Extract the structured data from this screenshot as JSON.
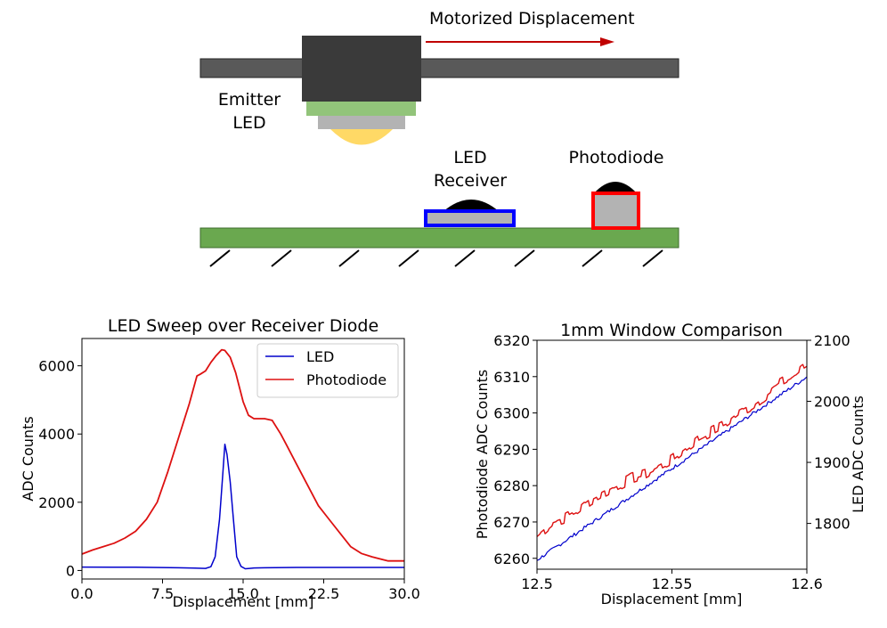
{
  "diagram": {
    "motor_label": "Motorized Displacement",
    "emitter_label_line1": "Emitter",
    "emitter_label_line2": "LED",
    "receiver_label_line1": "LED",
    "receiver_label_line2": "Receiver",
    "photodiode_label": "Photodiode",
    "colors": {
      "rail": "#595959",
      "carriage": "#3a3a3a",
      "led_base": "#92c47a",
      "led_body": "#b3b3b3",
      "led_lens": "#ffd966",
      "board": "#6aa84f",
      "receiver_border": "#0000ff",
      "photodiode_border": "#ff0000",
      "arrow": "#c00000"
    }
  },
  "chart_data": [
    {
      "type": "line",
      "title": "LED Sweep over Receiver Diode",
      "xlabel": "Displacement [mm]",
      "ylabel": "ADC Counts",
      "xlim": [
        0,
        30
      ],
      "ylim": [
        -250,
        6800
      ],
      "xticks": [
        0,
        7.5,
        15,
        22.5,
        30
      ],
      "xtick_labels": [
        "0.0",
        "7.5",
        "15.0",
        "22.5",
        "30.0"
      ],
      "yticks": [
        0,
        2000,
        4000,
        6000
      ],
      "ytick_labels": [
        "0",
        "2000",
        "4000",
        "6000"
      ],
      "grid": false,
      "legend": "top-right",
      "series": [
        {
          "name": "LED",
          "color": "#0000cc",
          "x": [
            0,
            5,
            9,
            10.5,
            11.5,
            12,
            12.4,
            12.8,
            13.1,
            13.3,
            13.5,
            13.8,
            14.1,
            14.4,
            14.8,
            15.2,
            15.6,
            16,
            17,
            20,
            25,
            30
          ],
          "y": [
            100,
            95,
            80,
            70,
            60,
            110,
            400,
            1500,
            2800,
            3700,
            3400,
            2600,
            1500,
            400,
            120,
            50,
            60,
            75,
            80,
            90,
            90,
            90
          ]
        },
        {
          "name": "Photodiode",
          "color": "#dd1111",
          "x": [
            0,
            1,
            2,
            3,
            4,
            5,
            6,
            7,
            8,
            9,
            10,
            10.7,
            11,
            11.5,
            12,
            12.5,
            13,
            13.3,
            13.8,
            14.3,
            15,
            15.5,
            16,
            17,
            17.7,
            18.5,
            19,
            20,
            21,
            22,
            23,
            24,
            25,
            26,
            27,
            28,
            28.5,
            30
          ],
          "y": [
            480,
            600,
            700,
            800,
            950,
            1150,
            1500,
            2000,
            2900,
            3900,
            4900,
            5700,
            5750,
            5850,
            6100,
            6300,
            6470,
            6450,
            6250,
            5800,
            4950,
            4550,
            4450,
            4450,
            4400,
            4000,
            3700,
            3100,
            2500,
            1900,
            1500,
            1100,
            700,
            500,
            400,
            320,
            280,
            280
          ]
        }
      ]
    },
    {
      "type": "line",
      "title": "1mm Window Comparison",
      "xlabel": "Displacement [mm]",
      "ylabel": "Photodiode ADC Counts",
      "ylabel_right": "LED ADC Counts",
      "xlim": [
        12.5,
        12.6
      ],
      "ylim": [
        6257,
        6320
      ],
      "ylim_right": [
        1725,
        2100
      ],
      "xticks": [
        12.5,
        12.55,
        12.6
      ],
      "xtick_labels": [
        "12.5",
        "12.55",
        "12.6"
      ],
      "yticks": [
        6260,
        6270,
        6280,
        6290,
        6300,
        6310,
        6320
      ],
      "yticks_right": [
        1800,
        1900,
        2000,
        2100
      ],
      "grid": false,
      "series": [
        {
          "name": "Photodiode",
          "axis": "left",
          "color": "#dd1111",
          "x": [
            12.5,
            12.503,
            12.506,
            12.51,
            12.515,
            12.52,
            12.525,
            12.53,
            12.535,
            12.54,
            12.545,
            12.55,
            12.555,
            12.56,
            12.565,
            12.57,
            12.575,
            12.58,
            12.585,
            12.59,
            12.595,
            12.598,
            12.6
          ],
          "y": [
            6266,
            6268,
            6270,
            6271,
            6273,
            6276,
            6278,
            6280,
            6282,
            6283,
            6285,
            6287,
            6290,
            6293,
            6295,
            6297,
            6300,
            6302,
            6305,
            6308,
            6310,
            6312,
            6313
          ]
        },
        {
          "name": "LED",
          "axis": "right",
          "color": "#0000cc",
          "x": [
            12.5,
            12.51,
            12.52,
            12.53,
            12.54,
            12.55,
            12.56,
            12.57,
            12.58,
            12.59,
            12.6
          ],
          "y": [
            1740,
            1770,
            1800,
            1830,
            1860,
            1890,
            1920,
            1950,
            1980,
            2010,
            2040
          ]
        }
      ]
    }
  ]
}
